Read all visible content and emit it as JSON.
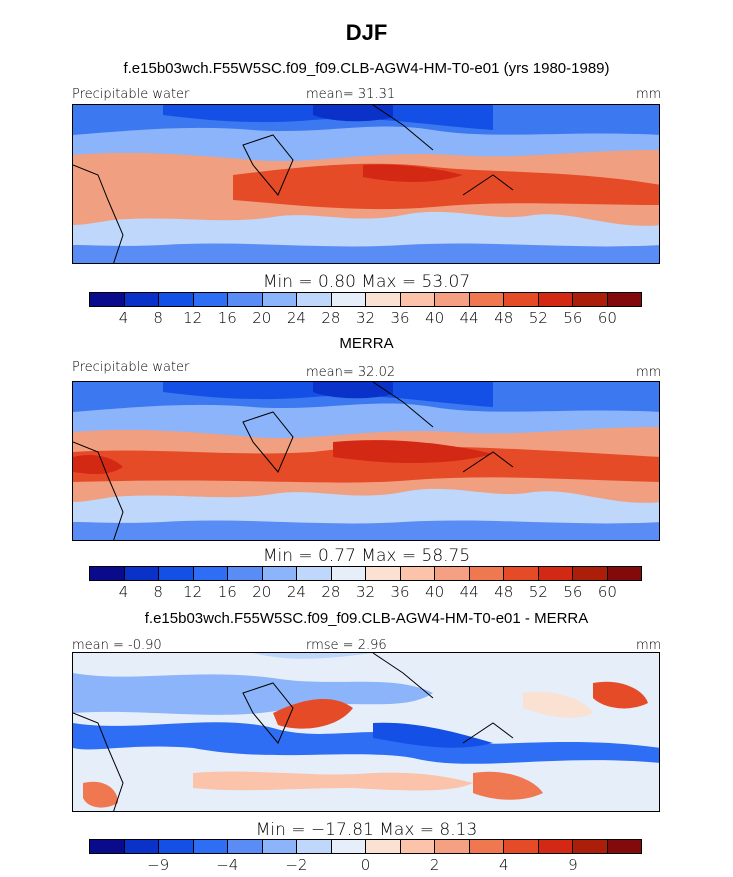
{
  "season_title": "DJF",
  "panel1": {
    "title": "f.e15b03wch.F55W5SC.f09_f09.CLB-AGW4-HM-T0-e01 (yrs 1980-1989)",
    "left_label": "Precipitable water",
    "center_label": "mean=   31.31",
    "right_label": "mm",
    "minmax": "Min =    0.80  Max =   53.07"
  },
  "panel2": {
    "title": "MERRA",
    "left_label": "Precipitable water",
    "center_label": "mean=   32.02",
    "right_label": "mm",
    "minmax": "Min =    0.77  Max =   58.75"
  },
  "panel3": {
    "title": "f.e15b03wch.F55W5SC.f09_f09.CLB-AGW4-HM-T0-e01 - MERRA",
    "left_label": "mean =   -0.90",
    "center_label": "rmse =     2.96",
    "right_label": "mm",
    "minmax": "Min = −17.81  Max =    8.13"
  },
  "colorbar_abs": {
    "colors": [
      "#0a0a8c",
      "#0a32c8",
      "#1450e6",
      "#2d6ef5",
      "#5a8cf5",
      "#8cb4fa",
      "#bed7fa",
      "#e6eefa",
      "#fae1d2",
      "#fac3aa",
      "#f5a082",
      "#f07850",
      "#e64b28",
      "#d22814",
      "#aa1e0a",
      "#820a0a"
    ],
    "ticks": [
      "4",
      "8",
      "12",
      "16",
      "20",
      "24",
      "28",
      "32",
      "36",
      "40",
      "44",
      "48",
      "52",
      "56",
      "60"
    ]
  },
  "colorbar_diff": {
    "colors": [
      "#0a0a8c",
      "#0a32c8",
      "#1450e6",
      "#2d6ef5",
      "#5a8cf5",
      "#8cb4fa",
      "#bed7fa",
      "#e6eefa",
      "#fae1d2",
      "#fac3aa",
      "#f5a082",
      "#f07850",
      "#e64b28",
      "#d22814",
      "#aa1e0a",
      "#820a0a"
    ],
    "ticks": [
      "−9",
      "−4",
      "−2",
      "0",
      "2",
      "4",
      "9"
    ],
    "tick_positions": [
      2,
      4,
      6,
      8,
      10,
      12,
      14
    ]
  }
}
